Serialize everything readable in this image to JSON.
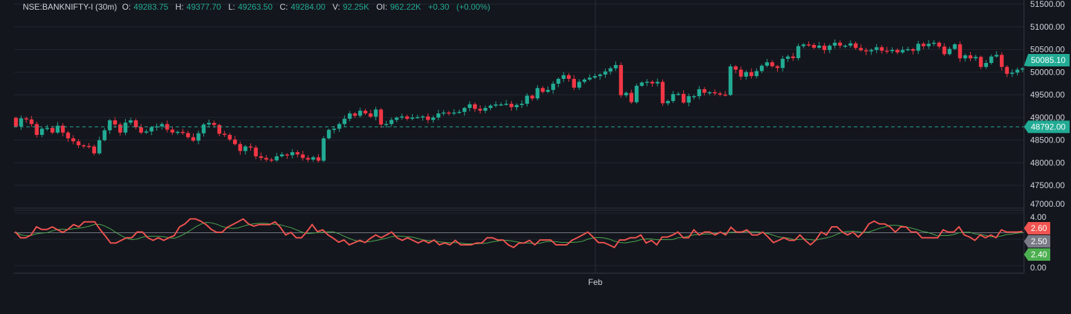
{
  "legend": {
    "symbol": "NSE:BANKNIFTY-I (30m)",
    "open_label": "O:",
    "open": "49283.75",
    "high_label": "H:",
    "high": "49377.70",
    "low_label": "L:",
    "low": "49263.50",
    "close_label": "C:",
    "close": "49284.00",
    "volume_label": "V:",
    "volume": "92.25K",
    "oi_label": "OI:",
    "oi": "962.22K",
    "change": "+0.30",
    "change_pct": "(+0.00%)"
  },
  "colors": {
    "up": "#22ab94",
    "down": "#f23645",
    "background": "#14161d",
    "indicator_main": "#f05350",
    "indicator_signal": "#4caf50",
    "level": "#787b86"
  },
  "chart_data": [
    {
      "type": "candlestick",
      "ylim": [
        47000,
        51500
      ],
      "y_ticks": [
        "51500.00",
        "51000.00",
        "50500.00",
        "50000.00",
        "49500.00",
        "49000.00",
        "48500.00",
        "48000.00",
        "47500.00",
        "47000.00"
      ],
      "x_ticks": [
        "Feb"
      ],
      "grid": true,
      "first_open": 48990,
      "closes": [
        48802,
        48980,
        48955,
        48853,
        48614,
        48751,
        48767,
        48665,
        48817,
        48665,
        48538,
        48472,
        48385,
        48370,
        48359,
        48206,
        48497,
        48716,
        48935,
        48843,
        48665,
        48884,
        48935,
        48782,
        48665,
        48690,
        48782,
        48802,
        48853,
        48731,
        48665,
        48680,
        48655,
        48563,
        48487,
        48649,
        48843,
        48879,
        48833,
        48639,
        48614,
        48512,
        48411,
        48258,
        48359,
        48334,
        48141,
        48105,
        48069,
        48053,
        48141,
        48182,
        48166,
        48232,
        48182,
        48105,
        48069,
        48120,
        48044,
        48538,
        48726,
        48751,
        48853,
        48970,
        49087,
        49037,
        49148,
        49087,
        49016,
        49174,
        48843,
        48853,
        48945,
        48996,
        49021,
        48970,
        48996,
        49006,
        49021,
        48945,
        48996,
        49087,
        49107,
        49087,
        49107,
        49122,
        49209,
        49290,
        49189,
        49148,
        49209,
        49260,
        49286,
        49286,
        49301,
        49225,
        49275,
        49301,
        49480,
        49419,
        49648,
        49565,
        49607,
        49744,
        49851,
        49932,
        49851,
        49657,
        49785,
        49836,
        49877,
        49912,
        49947,
        50014,
        50084,
        50156,
        49489,
        49541,
        49336,
        49698,
        49770,
        49785,
        49749,
        49785,
        49312,
        49362,
        49515,
        49519,
        49327,
        49469,
        49469,
        49622,
        49545,
        49556,
        49530,
        49504,
        49495,
        50126,
        50054,
        49901,
        49999,
        49912,
        50023,
        50141,
        50217,
        50130,
        50091,
        50294,
        50344,
        50309,
        50573,
        50610,
        50599,
        50538,
        50584,
        50488,
        50584,
        50649,
        50584,
        50584,
        50634,
        50533,
        50482,
        50457,
        50488,
        50549,
        50472,
        50462,
        50488,
        50436,
        50488,
        50507,
        50472,
        50625,
        50573,
        50625,
        50649,
        50564,
        50396,
        50512,
        50614,
        50304,
        50370,
        50304,
        50335,
        50115,
        50202,
        50344,
        50380,
        50115,
        49962,
        49988,
        50054,
        50085
      ],
      "last_price": "50085.10",
      "reference_line": "48792.00"
    },
    {
      "type": "line",
      "ylim": [
        0,
        4
      ],
      "y_ticks": [
        "4.00",
        "0.00"
      ],
      "level": 2.5,
      "series_main": [
        2.58,
        2.12,
        2.12,
        2.33,
        2.95,
        2.75,
        2.75,
        2.95,
        2.72,
        2.53,
        2.78,
        3.12,
        2.95,
        3.33,
        3.33,
        3.33,
        2.75,
        2.25,
        1.72,
        1.72,
        1.92,
        2.12,
        2.12,
        2.55,
        2.55,
        2.12,
        1.92,
        2.12,
        1.92,
        2.12,
        2.28,
        2.95,
        3.17,
        3.55,
        3.55,
        3.38,
        3.12,
        2.75,
        2.53,
        2.53,
        2.92,
        3.12,
        3.33,
        3.55,
        3.17,
        3.0,
        3.12,
        3.12,
        3.12,
        3.33,
        2.92,
        2.33,
        2.53,
        2.12,
        2.12,
        2.58,
        3.12,
        2.58,
        2.72,
        2.33,
        2.08,
        1.78,
        1.95,
        1.58,
        1.75,
        1.92,
        1.75,
        2.08,
        2.33,
        2.12,
        2.33,
        2.55,
        2.12,
        1.92,
        2.12,
        1.92,
        1.72,
        1.92,
        1.72,
        1.95,
        1.58,
        1.72,
        1.58,
        1.92,
        1.58,
        1.58,
        1.58,
        1.72,
        1.72,
        2.12,
        2.12,
        1.95,
        1.95,
        1.58,
        1.38,
        1.72,
        1.72,
        1.92,
        1.58,
        1.95,
        1.95,
        1.95,
        1.58,
        1.58,
        1.58,
        1.92,
        2.12,
        2.33,
        2.55,
        2.17,
        1.75,
        1.75,
        1.58,
        1.38,
        1.95,
        1.95,
        2.12,
        2.12,
        2.33,
        1.72,
        1.92,
        1.58,
        2.17,
        2.17,
        2.33,
        2.55,
        2.12,
        2.12,
        2.72,
        2.33,
        2.55,
        2.55,
        2.33,
        2.55,
        2.33,
        2.92,
        2.55,
        2.55,
        2.72,
        2.33,
        2.33,
        2.55,
        2.17,
        1.75,
        1.92,
        2.12,
        1.92,
        1.92,
        2.33,
        1.92,
        1.58,
        1.95,
        2.55,
        2.33,
        2.95,
        2.95,
        2.55,
        2.33,
        2.55,
        2.17,
        2.55,
        3.17,
        3.38,
        3.17,
        3.17,
        2.95,
        2.55,
        2.95,
        2.95,
        2.55,
        2.55,
        2.12,
        2.12,
        2.12,
        2.12,
        2.72,
        2.55,
        2.55,
        2.95,
        2.33,
        2.17,
        1.92,
        2.33,
        2.12,
        2.33,
        2.12,
        2.72,
        2.55,
        2.55,
        2.55,
        2.6
      ],
      "tags": [
        {
          "label": "2.60",
          "color": "#f05350"
        },
        {
          "label": "2.50",
          "color": "#787b86"
        },
        {
          "label": "2.40",
          "color": "#4caf50"
        }
      ]
    }
  ]
}
